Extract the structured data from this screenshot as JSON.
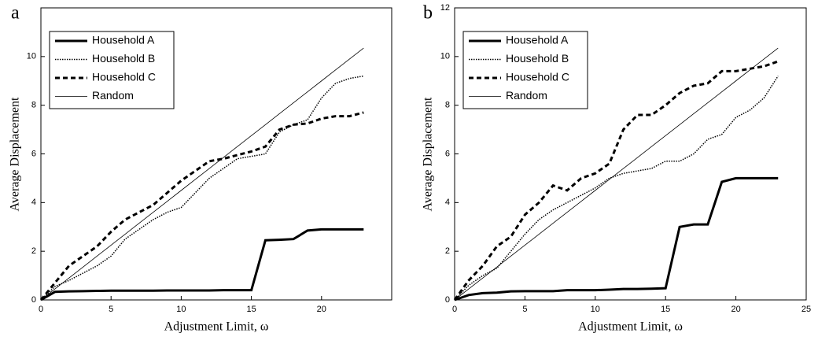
{
  "chart_data": [
    {
      "type": "line",
      "panel_label": "a",
      "x_label": "Adjustment Limit, ω",
      "y_label": "Average Displacement",
      "x": [
        0,
        1,
        2,
        3,
        4,
        5,
        6,
        7,
        8,
        9,
        10,
        11,
        12,
        13,
        14,
        15,
        16,
        17,
        18,
        19,
        20,
        21,
        22,
        23
      ],
      "xlim": [
        0,
        25
      ],
      "xticks": [
        0,
        5,
        10,
        15,
        20
      ],
      "ylim": [
        0,
        12
      ],
      "yticks": [
        0,
        2,
        4,
        6,
        8,
        10
      ],
      "legend": "upper left",
      "series": [
        {
          "name": "Household A",
          "color": "#000000",
          "width": 3,
          "dash": "none",
          "values": [
            0,
            0.33,
            0.35,
            0.36,
            0.37,
            0.38,
            0.38,
            0.38,
            0.38,
            0.39,
            0.39,
            0.39,
            0.39,
            0.4,
            0.4,
            0.4,
            2.45,
            2.47,
            2.5,
            2.85,
            2.9,
            2.9,
            2.9,
            2.9
          ]
        },
        {
          "name": "Household B",
          "color": "#000000",
          "width": 1.5,
          "dash": "1.5,1.5",
          "values": [
            0,
            0.55,
            0.8,
            1.1,
            1.4,
            1.8,
            2.5,
            2.9,
            3.3,
            3.6,
            3.8,
            4.4,
            5.0,
            5.4,
            5.8,
            5.9,
            6.0,
            6.9,
            7.2,
            7.4,
            8.3,
            8.9,
            9.1,
            9.2
          ]
        },
        {
          "name": "Household C",
          "color": "#000000",
          "width": 3,
          "dash": "6,4",
          "values": [
            0,
            0.7,
            1.4,
            1.8,
            2.2,
            2.8,
            3.3,
            3.6,
            3.9,
            4.4,
            4.9,
            5.3,
            5.7,
            5.8,
            5.95,
            6.1,
            6.3,
            7.0,
            7.2,
            7.25,
            7.45,
            7.55,
            7.55,
            7.7
          ]
        },
        {
          "name": "Random",
          "color": "#000000",
          "width": 0.8,
          "dash": "none",
          "values": [
            0,
            0.45,
            0.9,
            1.35,
            1.8,
            2.25,
            2.7,
            3.15,
            3.6,
            4.05,
            4.5,
            4.95,
            5.4,
            5.85,
            6.3,
            6.75,
            7.2,
            7.65,
            8.1,
            8.55,
            9.0,
            9.45,
            9.9,
            10.35
          ]
        }
      ]
    },
    {
      "type": "line",
      "panel_label": "b",
      "x_label": "Adjustment Limit, ω",
      "y_label": "Average Displacement",
      "x": [
        0,
        1,
        2,
        3,
        4,
        5,
        6,
        7,
        8,
        9,
        10,
        11,
        12,
        13,
        14,
        15,
        16,
        17,
        18,
        19,
        20,
        21,
        22,
        23
      ],
      "xlim": [
        0,
        25
      ],
      "xticks": [
        0,
        5,
        10,
        15,
        20,
        25
      ],
      "ylim": [
        0,
        12
      ],
      "yticks": [
        0,
        2,
        4,
        6,
        8,
        10,
        12
      ],
      "legend": "upper left",
      "series": [
        {
          "name": "Household A",
          "color": "#000000",
          "width": 3,
          "dash": "none",
          "values": [
            0,
            0.2,
            0.28,
            0.3,
            0.35,
            0.36,
            0.36,
            0.36,
            0.4,
            0.4,
            0.4,
            0.42,
            0.45,
            0.45,
            0.46,
            0.48,
            3.0,
            3.1,
            3.1,
            4.85,
            5.0,
            5.0,
            5.0,
            5.0
          ]
        },
        {
          "name": "Household B",
          "color": "#000000",
          "width": 1.5,
          "dash": "1.5,1.5",
          "values": [
            0,
            0.6,
            1.0,
            1.3,
            2.0,
            2.7,
            3.3,
            3.7,
            4.0,
            4.3,
            4.6,
            5.0,
            5.2,
            5.3,
            5.4,
            5.7,
            5.7,
            6.0,
            6.6,
            6.8,
            7.5,
            7.8,
            8.3,
            9.2
          ]
        },
        {
          "name": "Household C",
          "color": "#000000",
          "width": 3,
          "dash": "6,4",
          "values": [
            0,
            0.8,
            1.4,
            2.2,
            2.6,
            3.5,
            4.0,
            4.7,
            4.5,
            5.0,
            5.2,
            5.6,
            7.0,
            7.6,
            7.6,
            8.0,
            8.5,
            8.8,
            8.9,
            9.4,
            9.4,
            9.5,
            9.6,
            9.8
          ]
        },
        {
          "name": "Random",
          "color": "#000000",
          "width": 0.8,
          "dash": "none",
          "values": [
            0,
            0.45,
            0.9,
            1.35,
            1.8,
            2.25,
            2.7,
            3.15,
            3.6,
            4.05,
            4.5,
            4.95,
            5.4,
            5.85,
            6.3,
            6.75,
            7.2,
            7.65,
            8.1,
            8.55,
            9.0,
            9.45,
            9.9,
            10.35
          ]
        }
      ]
    }
  ]
}
